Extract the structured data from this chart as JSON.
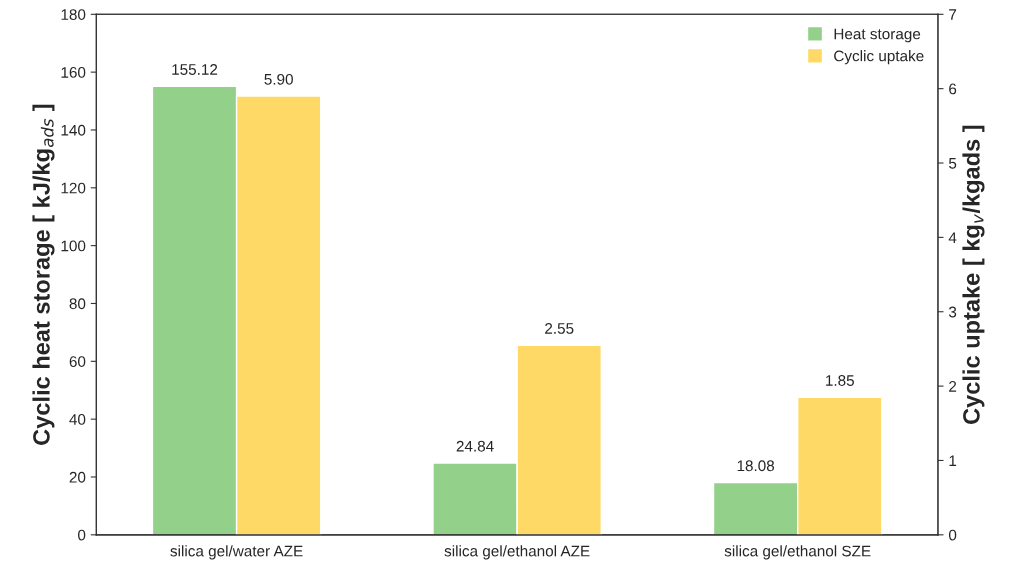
{
  "chart_data": {
    "type": "bar",
    "categories": [
      "silica gel/water AZE",
      "silica gel/ethanol AZE",
      "silica gel/ethanol SZE"
    ],
    "series": [
      {
        "name": "Heat storage",
        "color": "#93d18a",
        "values": [
          155.12,
          24.84,
          18.08
        ]
      },
      {
        "name": "Cyclic uptake",
        "color": "#ffd966",
        "values": [
          5.9,
          2.55,
          1.85
        ],
        "axis": "y2"
      }
    ],
    "ylabel": "Cyclic heat storage [ kJ/kg$_{ads}$ ]",
    "y2label": "Cyclic uptake [ kg$_{v}$/kgads ]",
    "ylim": [
      0,
      180
    ],
    "yticks": [
      0,
      20,
      40,
      60,
      80,
      100,
      120,
      140,
      160,
      180
    ],
    "y2lim": [
      0,
      7
    ],
    "y2ticks": [
      0,
      1,
      2,
      3,
      4,
      5,
      6,
      7
    ],
    "value_labels": [
      [
        "155.12",
        "24.84",
        "18.08"
      ],
      [
        "5.90",
        "2.55",
        "1.85"
      ]
    ],
    "legend": "top right",
    "grid": false
  }
}
